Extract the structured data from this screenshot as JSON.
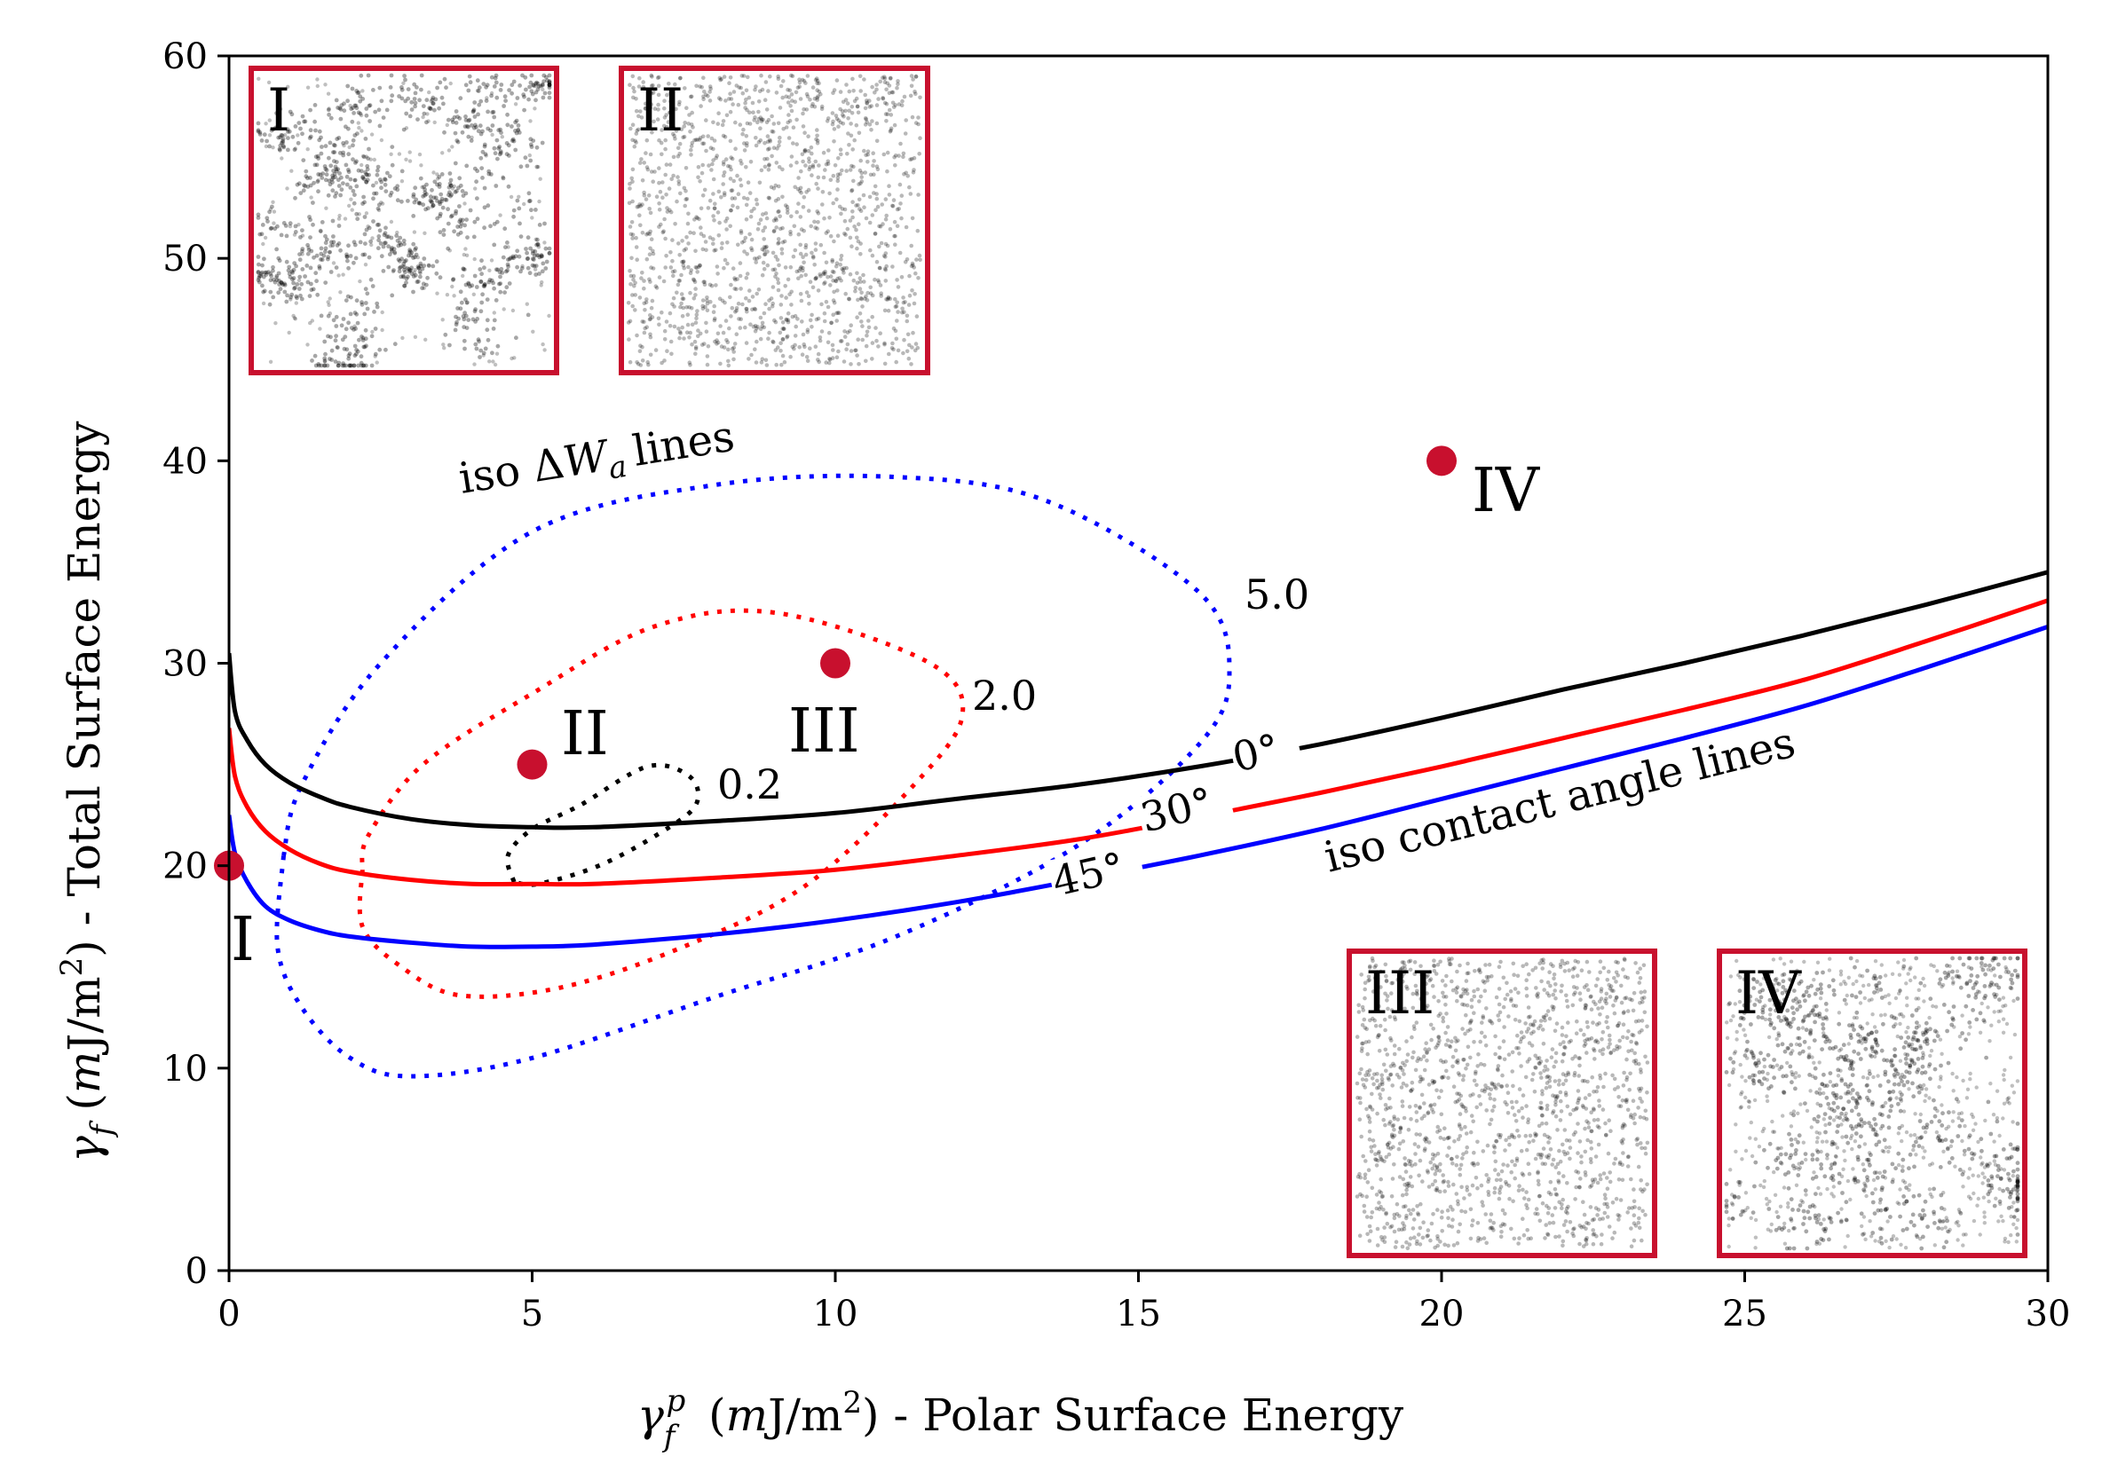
{
  "chart_data": {
    "type": "line",
    "xlabel": "γ_f^p (mJ/m²) - Polar Surface Energy",
    "ylabel": "γ_f (mJ/m²) - Total Surface Energy",
    "xlim": [
      0,
      30
    ],
    "ylim": [
      0,
      60
    ],
    "xticks": [
      "0",
      "5",
      "10",
      "15",
      "20",
      "25",
      "30"
    ],
    "yticks": [
      "0",
      "10",
      "20",
      "30",
      "40",
      "50",
      "60"
    ],
    "colors": {
      "black": "#000000",
      "red": "#ff0000",
      "blue": "#0000ff",
      "marker": "#c8102e"
    },
    "contact_angle_lines": [
      {
        "name": "0°",
        "label": "0°",
        "color": "#000000",
        "points": [
          [
            0,
            30.5
          ],
          [
            0.1,
            27.6
          ],
          [
            0.3,
            26.2
          ],
          [
            0.6,
            25.0
          ],
          [
            1,
            24.1
          ],
          [
            1.5,
            23.4
          ],
          [
            2,
            22.9
          ],
          [
            3,
            22.3
          ],
          [
            4,
            22.0
          ],
          [
            5,
            21.9
          ],
          [
            6,
            21.9
          ],
          [
            8,
            22.2
          ],
          [
            10,
            22.6
          ],
          [
            12,
            23.3
          ],
          [
            14,
            24.0
          ],
          [
            16,
            24.9
          ],
          [
            18,
            26.0
          ],
          [
            20,
            27.3
          ],
          [
            22,
            28.7
          ],
          [
            24,
            30.0
          ],
          [
            26,
            31.4
          ],
          [
            28,
            32.9
          ],
          [
            30,
            34.5
          ]
        ]
      },
      {
        "name": "30°",
        "label": "30°",
        "color": "#ff0000",
        "points": [
          [
            0,
            26.8
          ],
          [
            0.1,
            24.4
          ],
          [
            0.3,
            22.9
          ],
          [
            0.6,
            21.7
          ],
          [
            1,
            20.8
          ],
          [
            1.5,
            20.1
          ],
          [
            2,
            19.7
          ],
          [
            3,
            19.3
          ],
          [
            4,
            19.1
          ],
          [
            5,
            19.1
          ],
          [
            6,
            19.1
          ],
          [
            8,
            19.4
          ],
          [
            10,
            19.8
          ],
          [
            12,
            20.5
          ],
          [
            14,
            21.3
          ],
          [
            16,
            22.4
          ],
          [
            18,
            23.6
          ],
          [
            20,
            24.9
          ],
          [
            22,
            26.3
          ],
          [
            24,
            27.7
          ],
          [
            26,
            29.2
          ],
          [
            28,
            31.1
          ],
          [
            30,
            33.1
          ]
        ]
      },
      {
        "name": "45°",
        "label": "45°",
        "color": "#0000ff",
        "points": [
          [
            0,
            22.5
          ],
          [
            0.1,
            20.6
          ],
          [
            0.3,
            19.2
          ],
          [
            0.6,
            18.0
          ],
          [
            1,
            17.3
          ],
          [
            1.5,
            16.8
          ],
          [
            2,
            16.5
          ],
          [
            3,
            16.2
          ],
          [
            4,
            16.0
          ],
          [
            5,
            16.0
          ],
          [
            6,
            16.1
          ],
          [
            8,
            16.6
          ],
          [
            10,
            17.3
          ],
          [
            12,
            18.2
          ],
          [
            14,
            19.3
          ],
          [
            16,
            20.5
          ],
          [
            18,
            21.8
          ],
          [
            20,
            23.3
          ],
          [
            22,
            24.8
          ],
          [
            24,
            26.3
          ],
          [
            26,
            27.9
          ],
          [
            28,
            29.8
          ],
          [
            30,
            31.8
          ]
        ]
      }
    ],
    "iso_dWa_lines": [
      {
        "name": "0.2",
        "label": "0.2",
        "color": "#000000",
        "points": [
          [
            4.7,
            19.2
          ],
          [
            4.6,
            20.5
          ],
          [
            5.0,
            21.8
          ],
          [
            5.8,
            23.0
          ],
          [
            6.9,
            24.9
          ],
          [
            7.6,
            24.4
          ],
          [
            7.7,
            23.0
          ],
          [
            7.1,
            21.6
          ],
          [
            6.1,
            20.0
          ],
          [
            5.1,
            19.1
          ],
          [
            4.7,
            19.2
          ]
        ]
      },
      {
        "name": "2.0",
        "label": "2.0",
        "color": "#ff0000",
        "points": [
          [
            2.2,
            19.8
          ],
          [
            2.2,
            17.0
          ],
          [
            2.8,
            15.1
          ],
          [
            3.8,
            13.6
          ],
          [
            5.5,
            14.0
          ],
          [
            7.5,
            16.0
          ],
          [
            9.5,
            19.0
          ],
          [
            11.3,
            24.0
          ],
          [
            12.1,
            27.5
          ],
          [
            11.5,
            30.1
          ],
          [
            9.0,
            32.5
          ],
          [
            7.0,
            31.8
          ],
          [
            5.0,
            28.5
          ],
          [
            3.2,
            25.0
          ],
          [
            2.3,
            21.5
          ],
          [
            2.2,
            19.8
          ]
        ]
      },
      {
        "name": "5.0",
        "label": "5.0",
        "color": "#0000ff",
        "points": [
          [
            0.9,
            20.5
          ],
          [
            0.8,
            16.0
          ],
          [
            1.2,
            13.0
          ],
          [
            2.0,
            10.5
          ],
          [
            3.0,
            9.6
          ],
          [
            5.0,
            10.5
          ],
          [
            8.0,
            13.5
          ],
          [
            11.0,
            16.5
          ],
          [
            14.0,
            21.0
          ],
          [
            16.0,
            26.0
          ],
          [
            16.5,
            29.5
          ],
          [
            16.0,
            33.5
          ],
          [
            13.5,
            38.0
          ],
          [
            11.0,
            39.2
          ],
          [
            8.0,
            38.8
          ],
          [
            5.0,
            36.5
          ],
          [
            2.5,
            30.0
          ],
          [
            1.2,
            24.0
          ],
          [
            0.9,
            20.5
          ]
        ]
      }
    ],
    "points": [
      {
        "label": "I",
        "x": 0,
        "y": 20
      },
      {
        "label": "II",
        "x": 5,
        "y": 25
      },
      {
        "label": "III",
        "x": 10,
        "y": 30
      },
      {
        "label": "IV",
        "x": 20,
        "y": 40
      }
    ],
    "annotations": [
      "iso ΔW_a lines",
      "iso contact angle lines"
    ],
    "insets": [
      {
        "label": "I",
        "pattern": "clustered",
        "seed": 11
      },
      {
        "label": "II",
        "pattern": "uniform",
        "seed": 23
      },
      {
        "label": "III",
        "pattern": "uniform",
        "seed": 37
      },
      {
        "label": "IV",
        "pattern": "semi-clustered",
        "seed": 51
      }
    ]
  }
}
